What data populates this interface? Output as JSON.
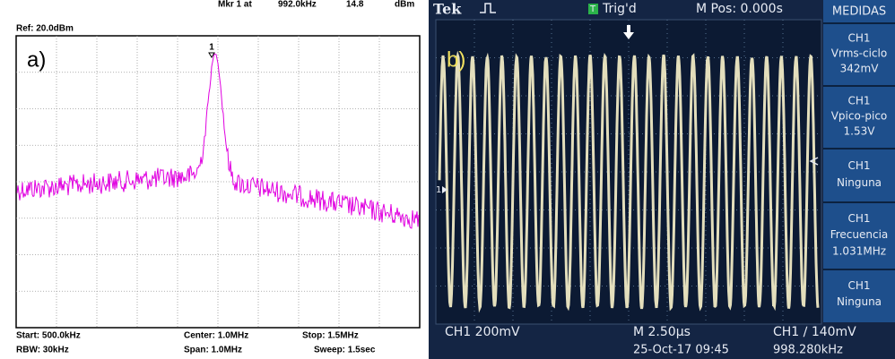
{
  "panel_a": {
    "ref": "Ref: 20.0dBm",
    "marker_label": "Mkr 1 at",
    "marker_freq": "992.0kHz",
    "marker_level": "14.8",
    "marker_unit": "dBm",
    "panel_label": "a)",
    "marker_number": "1",
    "footer": [
      [
        "Start: 500.0kHz",
        "Center: 1.0MHz",
        "Stop: 1.5MHz"
      ],
      [
        "RBW: 30kHz",
        "Span: 1.0MHz",
        "Sweep: 1.5sec"
      ]
    ]
  },
  "panel_b": {
    "brand": "Tek",
    "trigger_icon": "T",
    "trigger_state": "Trig'd",
    "position": "M Pos: 0.000s",
    "menu_title": "MEDIDAS",
    "panel_label": "b)",
    "channel_marker": "1",
    "measurements": [
      {
        "channel": "CH1",
        "name": "Vrms-ciclo",
        "value": "342mV"
      },
      {
        "channel": "CH1",
        "name": "Vpico-pico",
        "value": "1.53V"
      },
      {
        "channel": "CH1",
        "name": "Ninguna"
      },
      {
        "channel": "CH1",
        "name": "Frecuencia",
        "value": "1.031MHz"
      },
      {
        "channel": "CH1",
        "name": "Ninguna"
      }
    ],
    "footer": {
      "channel_scale": "CH1  200mV",
      "timebase": "M 2.50µs",
      "date": "25-Oct-17 09:45",
      "trigger": "CH1 ∕ 140mV",
      "frequency": "998.280kHz"
    }
  }
}
